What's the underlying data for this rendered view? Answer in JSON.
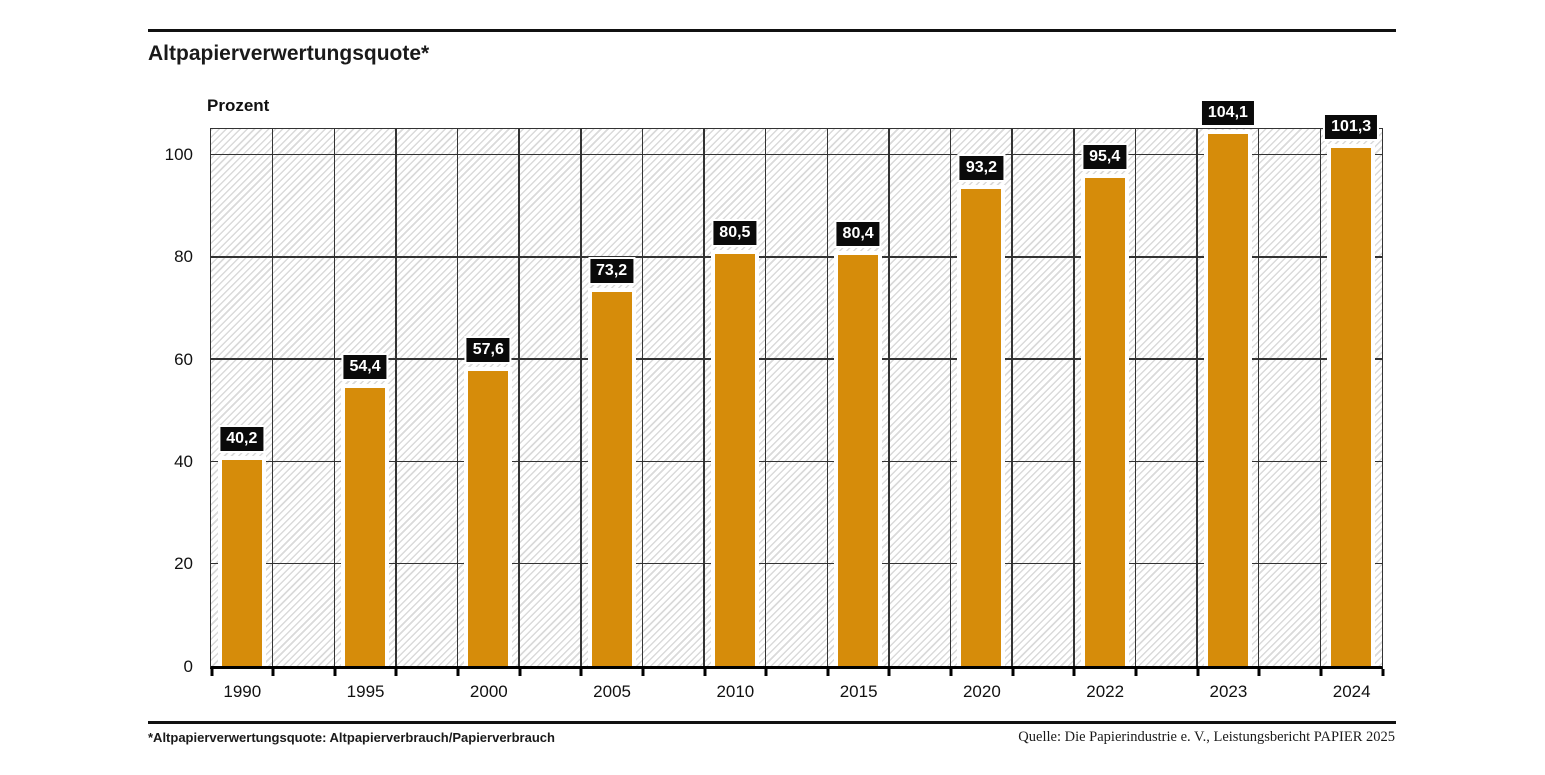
{
  "header": {
    "title": "Altpapierverwertungsquote*"
  },
  "chart_data": {
    "type": "bar",
    "title": "Altpapierverwertungsquote*",
    "ylabel": "Prozent",
    "xlabel": "",
    "categories": [
      "1990",
      "1995",
      "2000",
      "2005",
      "2010",
      "2015",
      "2020",
      "2022",
      "2023",
      "2024"
    ],
    "values": [
      40.2,
      54.4,
      57.6,
      73.2,
      80.5,
      80.4,
      93.2,
      95.4,
      104.1,
      101.3
    ],
    "value_labels": [
      "40,2",
      "54,4",
      "57,6",
      "73,2",
      "80,5",
      "80,4",
      "93,2",
      "95,4",
      "104,1",
      "101,3"
    ],
    "y_ticks": [
      0,
      20,
      40,
      60,
      80,
      100
    ],
    "ylim": [
      0,
      105
    ],
    "grid": true,
    "legend_position": "none",
    "bar_color": "#d68c0a",
    "value_label_bg": "#0a0a0a",
    "value_label_color": "#ffffff",
    "plot_background": "white with light gray diagonal hatching"
  },
  "footer": {
    "footnote": "*Altpapierverwertungsquote: Altpapierverbrauch/Papierverbrauch",
    "source": "Quelle: Die Papierindustrie e. V., Leistungsbericht PAPIER 2025"
  }
}
